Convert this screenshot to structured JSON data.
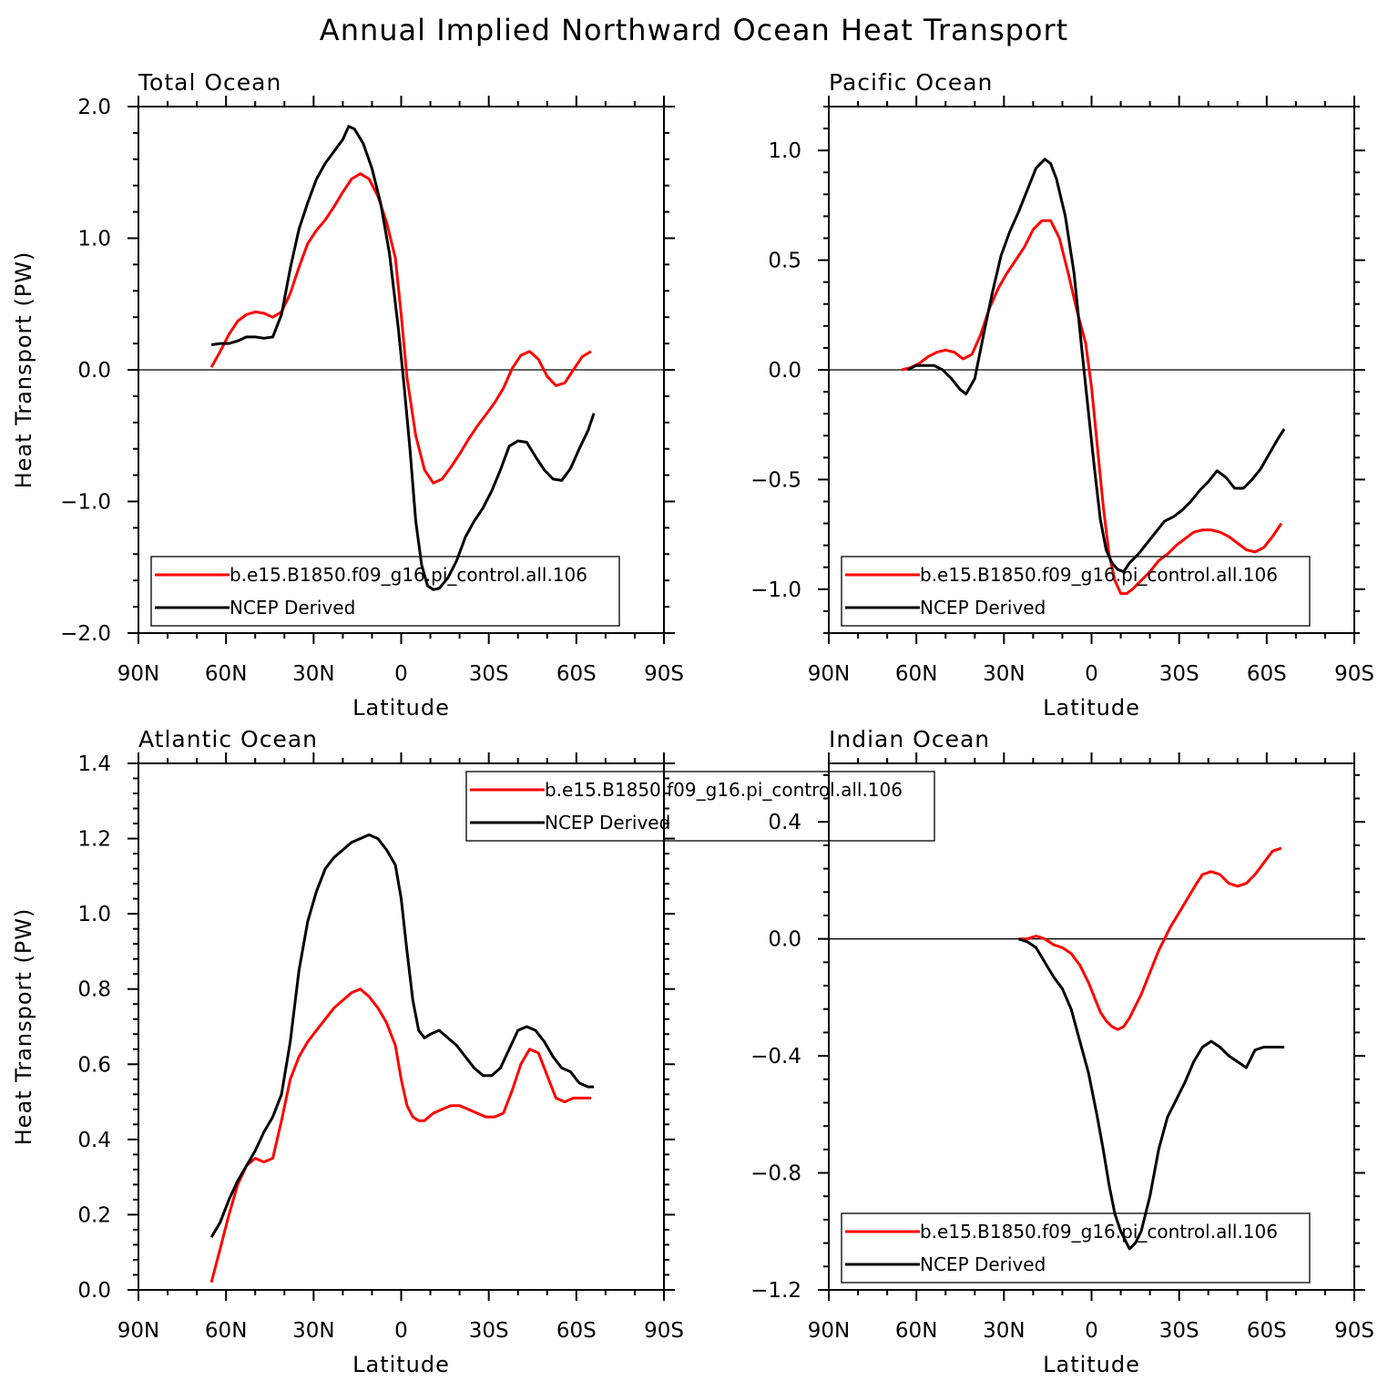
{
  "title": "Annual Implied Northward Ocean Heat Transport",
  "chart_data": [
    {
      "type": "line",
      "title": "Total Ocean",
      "xlabel": "Latitude",
      "ylabel": "Heat Transport (PW)",
      "xlim": [
        -90,
        90
      ],
      "ylim": [
        -2.0,
        2.0
      ],
      "xticks": [
        -90,
        -60,
        -30,
        0,
        30,
        60,
        90
      ],
      "xtick_labels": [
        "90N",
        "60N",
        "30N",
        "0",
        "30S",
        "60S",
        "90S"
      ],
      "yticks": [
        -2.0,
        -1.0,
        0.0,
        1.0,
        2.0
      ],
      "ytick_labels": [
        "−2.0",
        "−1.0",
        "0.0",
        "1.0",
        "2.0"
      ],
      "zero_line": true,
      "legend_position": "bottom-left",
      "series": [
        {
          "name": "b.e15.B1850.f09_g16.pi_control.all.106",
          "color": "#ff0000",
          "x": [
            -65,
            -62,
            -59,
            -56,
            -53,
            -50,
            -47,
            -44,
            -41,
            -38,
            -35,
            -32,
            -29,
            -26,
            -23,
            -20,
            -17,
            -14,
            -11,
            -8,
            -5,
            -2,
            0,
            2,
            5,
            8,
            11,
            14,
            17,
            20,
            23,
            26,
            29,
            32,
            35,
            38,
            41,
            44,
            47,
            50,
            53,
            56,
            59,
            62,
            65
          ],
          "y": [
            0.02,
            0.14,
            0.27,
            0.37,
            0.42,
            0.44,
            0.43,
            0.4,
            0.44,
            0.58,
            0.78,
            0.96,
            1.06,
            1.14,
            1.24,
            1.35,
            1.45,
            1.49,
            1.45,
            1.32,
            1.12,
            0.85,
            0.42,
            -0.06,
            -0.5,
            -0.76,
            -0.86,
            -0.83,
            -0.74,
            -0.64,
            -0.53,
            -0.43,
            -0.34,
            -0.25,
            -0.14,
            0.01,
            0.11,
            0.14,
            0.08,
            -0.05,
            -0.12,
            -0.1,
            0.0,
            0.1,
            0.14
          ]
        },
        {
          "name": "NCEP Derived",
          "color": "#000000",
          "x": [
            -65,
            -62,
            -59,
            -56,
            -53,
            -50,
            -47,
            -44,
            -41,
            -38,
            -35,
            -32,
            -29,
            -26,
            -23,
            -20,
            -18,
            -16,
            -13,
            -10,
            -7,
            -4,
            -1,
            1,
            3,
            5,
            7,
            9,
            11,
            13,
            16,
            19,
            22,
            25,
            28,
            31,
            34,
            37,
            40,
            43,
            46,
            49,
            52,
            55,
            58,
            61,
            64,
            66
          ],
          "y": [
            0.19,
            0.2,
            0.2,
            0.22,
            0.25,
            0.25,
            0.24,
            0.25,
            0.42,
            0.77,
            1.07,
            1.27,
            1.45,
            1.57,
            1.66,
            1.75,
            1.85,
            1.83,
            1.72,
            1.53,
            1.26,
            0.88,
            0.32,
            -0.12,
            -0.6,
            -1.15,
            -1.48,
            -1.64,
            -1.67,
            -1.66,
            -1.58,
            -1.45,
            -1.27,
            -1.15,
            -1.05,
            -0.92,
            -0.76,
            -0.58,
            -0.54,
            -0.55,
            -0.66,
            -0.76,
            -0.83,
            -0.84,
            -0.75,
            -0.6,
            -0.46,
            -0.33
          ]
        }
      ]
    },
    {
      "type": "line",
      "title": "Pacific Ocean",
      "xlabel": "Latitude",
      "ylabel": "",
      "xlim": [
        -90,
        90
      ],
      "ylim": [
        -1.2,
        1.2
      ],
      "xticks": [
        -90,
        -60,
        -30,
        0,
        30,
        60,
        90
      ],
      "xtick_labels": [
        "90N",
        "60N",
        "30N",
        "0",
        "30S",
        "60S",
        "90S"
      ],
      "yticks": [
        -1.0,
        -0.5,
        0.0,
        0.5,
        1.0
      ],
      "ytick_labels": [
        "−1.0",
        "−0.5",
        "0.0",
        "0.5",
        "1.0"
      ],
      "zero_line": true,
      "legend_position": "bottom",
      "series": [
        {
          "name": "b.e15.B1850.f09_g16.pi_control.all.106",
          "color": "#ff0000",
          "x": [
            -65,
            -62,
            -59,
            -56,
            -53,
            -50,
            -47,
            -44,
            -41,
            -38,
            -35,
            -32,
            -29,
            -26,
            -23,
            -20,
            -17,
            -14,
            -11,
            -8,
            -5,
            -2,
            0,
            2,
            4,
            6,
            8,
            10,
            12,
            14,
            17,
            20,
            23,
            26,
            29,
            32,
            35,
            38,
            41,
            44,
            47,
            50,
            53,
            56,
            59,
            62,
            65
          ],
          "y": [
            0.0,
            0.01,
            0.03,
            0.06,
            0.08,
            0.09,
            0.08,
            0.05,
            0.07,
            0.16,
            0.28,
            0.37,
            0.44,
            0.5,
            0.56,
            0.64,
            0.68,
            0.68,
            0.6,
            0.44,
            0.27,
            0.12,
            -0.08,
            -0.35,
            -0.62,
            -0.84,
            -0.96,
            -1.02,
            -1.02,
            -1.0,
            -0.96,
            -0.92,
            -0.87,
            -0.84,
            -0.8,
            -0.77,
            -0.74,
            -0.73,
            -0.73,
            -0.74,
            -0.76,
            -0.79,
            -0.82,
            -0.83,
            -0.81,
            -0.76,
            -0.7
          ]
        },
        {
          "name": "NCEP Derived",
          "color": "#000000",
          "x": [
            -63,
            -60,
            -57,
            -54,
            -51,
            -48,
            -45,
            -43,
            -40,
            -37,
            -34,
            -31,
            -28,
            -25,
            -22,
            -19,
            -16,
            -14,
            -12,
            -9,
            -6,
            -3,
            -1,
            1,
            3,
            5,
            7,
            9,
            11,
            13,
            16,
            19,
            22,
            25,
            28,
            31,
            34,
            37,
            40,
            43,
            46,
            49,
            52,
            55,
            58,
            61,
            64,
            66
          ],
          "y": [
            0.0,
            0.02,
            0.02,
            0.02,
            0.0,
            -0.04,
            -0.09,
            -0.11,
            -0.04,
            0.16,
            0.35,
            0.52,
            0.63,
            0.72,
            0.82,
            0.92,
            0.96,
            0.94,
            0.87,
            0.7,
            0.44,
            0.05,
            -0.2,
            -0.45,
            -0.68,
            -0.82,
            -0.88,
            -0.91,
            -0.92,
            -0.88,
            -0.84,
            -0.79,
            -0.74,
            -0.69,
            -0.67,
            -0.64,
            -0.6,
            -0.55,
            -0.51,
            -0.46,
            -0.49,
            -0.54,
            -0.54,
            -0.5,
            -0.45,
            -0.38,
            -0.31,
            -0.27
          ]
        }
      ]
    },
    {
      "type": "line",
      "title": "Atlantic Ocean",
      "xlabel": "Latitude",
      "ylabel": "Heat Transport (PW)",
      "xlim": [
        -90,
        90
      ],
      "ylim": [
        0.0,
        1.4
      ],
      "xticks": [
        -90,
        -60,
        -30,
        0,
        30,
        60,
        90
      ],
      "xtick_labels": [
        "90N",
        "60N",
        "30N",
        "0",
        "30S",
        "60S",
        "90S"
      ],
      "yticks": [
        0.0,
        0.2,
        0.4,
        0.6,
        0.8,
        1.0,
        1.2,
        1.4
      ],
      "ytick_labels": [
        "0.0",
        "0.2",
        "0.4",
        "0.6",
        "0.8",
        "1.0",
        "1.2",
        "1.4"
      ],
      "zero_line": false,
      "legend_position": "top-center",
      "series": [
        {
          "name": "b.e15.B1850.f09_g16.pi_control.all.106",
          "color": "#ff0000",
          "x": [
            -65,
            -62,
            -59,
            -56,
            -53,
            -50,
            -47,
            -44,
            -41,
            -38,
            -35,
            -32,
            -29,
            -26,
            -23,
            -20,
            -17,
            -14,
            -11,
            -8,
            -5,
            -2,
            0,
            2,
            4,
            6,
            8,
            11,
            14,
            17,
            20,
            23,
            26,
            29,
            32,
            35,
            38,
            41,
            44,
            47,
            50,
            53,
            56,
            59,
            62,
            65
          ],
          "y": [
            0.02,
            0.11,
            0.2,
            0.28,
            0.33,
            0.35,
            0.34,
            0.35,
            0.45,
            0.56,
            0.62,
            0.66,
            0.69,
            0.72,
            0.75,
            0.77,
            0.79,
            0.8,
            0.78,
            0.75,
            0.71,
            0.65,
            0.56,
            0.49,
            0.46,
            0.45,
            0.45,
            0.47,
            0.48,
            0.49,
            0.49,
            0.48,
            0.47,
            0.46,
            0.46,
            0.47,
            0.53,
            0.6,
            0.64,
            0.63,
            0.57,
            0.51,
            0.5,
            0.51,
            0.51,
            0.51
          ]
        },
        {
          "name": "NCEP Derived",
          "color": "#000000",
          "x": [
            -65,
            -62,
            -59,
            -56,
            -53,
            -50,
            -47,
            -44,
            -41,
            -38,
            -35,
            -32,
            -29,
            -26,
            -23,
            -20,
            -17,
            -14,
            -11,
            -8,
            -5,
            -2,
            0,
            2,
            4,
            6,
            8,
            10,
            13,
            16,
            19,
            22,
            25,
            28,
            31,
            34,
            37,
            40,
            43,
            46,
            49,
            52,
            55,
            58,
            61,
            64,
            66
          ],
          "y": [
            0.14,
            0.18,
            0.24,
            0.29,
            0.33,
            0.37,
            0.42,
            0.46,
            0.52,
            0.66,
            0.85,
            0.98,
            1.06,
            1.12,
            1.15,
            1.17,
            1.19,
            1.2,
            1.21,
            1.2,
            1.17,
            1.13,
            1.04,
            0.9,
            0.77,
            0.69,
            0.67,
            0.68,
            0.69,
            0.67,
            0.65,
            0.62,
            0.59,
            0.57,
            0.57,
            0.59,
            0.64,
            0.69,
            0.7,
            0.69,
            0.66,
            0.62,
            0.59,
            0.58,
            0.55,
            0.54,
            0.54
          ]
        }
      ]
    },
    {
      "type": "line",
      "title": "Indian Ocean",
      "xlabel": "Latitude",
      "ylabel": "",
      "xlim": [
        -90,
        90
      ],
      "ylim": [
        -1.2,
        0.6
      ],
      "xticks": [
        -90,
        -60,
        -30,
        0,
        30,
        60,
        90
      ],
      "xtick_labels": [
        "90N",
        "60N",
        "30N",
        "0",
        "30S",
        "60S",
        "90S"
      ],
      "yticks": [
        -1.2,
        -0.8,
        -0.4,
        0.0,
        0.4
      ],
      "ytick_labels": [
        "−1.2",
        "−0.8",
        "−0.4",
        "0.0",
        "0.4"
      ],
      "zero_line": true,
      "legend_position": "bottom",
      "series": [
        {
          "name": "b.e15.B1850.f09_g16.pi_control.all.106",
          "color": "#ff0000",
          "x": [
            -25,
            -22,
            -19,
            -16,
            -13,
            -10,
            -7,
            -4,
            -1,
            1,
            3,
            5,
            7,
            9,
            11,
            13,
            15,
            17,
            19,
            21,
            23,
            25,
            27,
            30,
            33,
            36,
            38,
            41,
            44,
            47,
            50,
            53,
            56,
            59,
            62,
            65
          ],
          "y": [
            0.0,
            0.0,
            0.01,
            0.0,
            -0.02,
            -0.03,
            -0.05,
            -0.09,
            -0.15,
            -0.2,
            -0.25,
            -0.28,
            -0.3,
            -0.31,
            -0.3,
            -0.27,
            -0.23,
            -0.19,
            -0.14,
            -0.09,
            -0.04,
            0.0,
            0.04,
            0.09,
            0.14,
            0.19,
            0.22,
            0.23,
            0.22,
            0.19,
            0.18,
            0.19,
            0.22,
            0.26,
            0.3,
            0.31
          ]
        },
        {
          "name": "NCEP Derived",
          "color": "#000000",
          "x": [
            -25,
            -22,
            -19,
            -16,
            -13,
            -10,
            -7,
            -4,
            -1,
            2,
            4,
            6,
            8,
            10,
            12,
            13,
            15,
            17,
            20,
            23,
            26,
            29,
            32,
            35,
            38,
            41,
            44,
            47,
            50,
            53,
            56,
            59,
            62,
            65,
            66
          ],
          "y": [
            0.0,
            -0.01,
            -0.03,
            -0.08,
            -0.13,
            -0.17,
            -0.24,
            -0.35,
            -0.46,
            -0.61,
            -0.72,
            -0.84,
            -0.94,
            -1.0,
            -1.04,
            -1.06,
            -1.04,
            -1.0,
            -0.88,
            -0.72,
            -0.61,
            -0.55,
            -0.49,
            -0.42,
            -0.37,
            -0.35,
            -0.37,
            -0.4,
            -0.42,
            -0.44,
            -0.38,
            -0.37,
            -0.37,
            -0.37,
            -0.37
          ]
        }
      ]
    }
  ]
}
